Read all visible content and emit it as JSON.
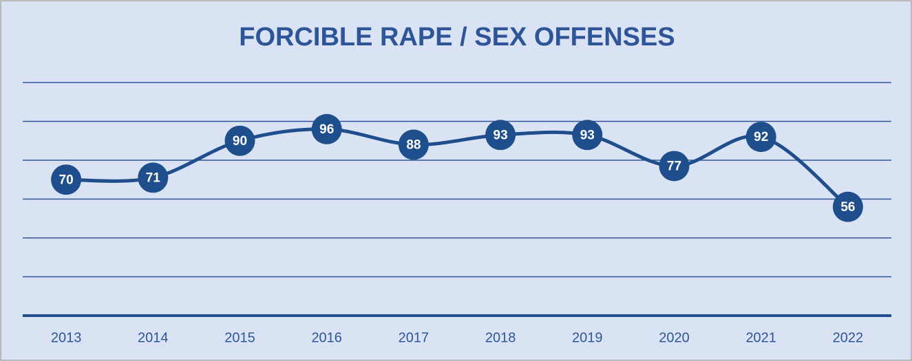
{
  "chart_data": {
    "type": "line",
    "title": "FORCIBLE RAPE / SEX OFFENSES",
    "categories": [
      "2013",
      "2014",
      "2015",
      "2016",
      "2017",
      "2018",
      "2019",
      "2020",
      "2021",
      "2022"
    ],
    "values": [
      70,
      71,
      90,
      96,
      88,
      93,
      93,
      77,
      92,
      56
    ],
    "color": "#1f4e8c",
    "smooth": true,
    "ylim": [
      0,
      120
    ],
    "yticks": [
      0,
      20,
      40,
      60,
      80,
      100,
      120
    ],
    "grid": true
  }
}
